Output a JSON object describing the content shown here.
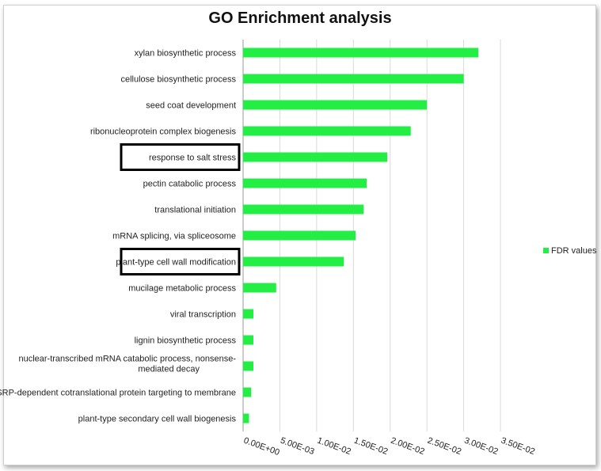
{
  "chart_data": {
    "type": "bar",
    "orientation": "horizontal",
    "title": "GO Enrichment analysis",
    "categories": [
      "xylan biosynthetic process",
      "cellulose biosynthetic process",
      "seed coat development",
      "ribonucleoprotein complex biogenesis",
      "response to salt stress",
      "pectin catabolic process",
      "translational initiation",
      "mRNA splicing, via spliceosome",
      "plant-type cell wall modification",
      "mucilage metabolic process",
      "viral transcription",
      "lignin biosynthetic process",
      "nuclear-transcribed mRNA catabolic process, nonsense-mediated decay",
      "SRP-dependent cotranslational protein targeting to membrane",
      "plant-type secondary cell wall biogenesis"
    ],
    "series": [
      {
        "name": "FDR values",
        "color": "#22ee44",
        "values": [
          0.032,
          0.03,
          0.025,
          0.0228,
          0.0196,
          0.0168,
          0.0164,
          0.0153,
          0.0137,
          0.0045,
          0.0014,
          0.0014,
          0.0014,
          0.0011,
          0.0008
        ]
      }
    ],
    "highlighted_categories": [
      "response to salt stress",
      "plant-type cell wall modification"
    ],
    "xlim": [
      0,
      0.035
    ],
    "xticks": [
      "0.00E+00",
      "5.00E-03",
      "1.00E-02",
      "1.50E-02",
      "2.00E-02",
      "2.50E-02",
      "3.00E-02",
      "3.50E-02"
    ],
    "grid": true,
    "legend_position": "right"
  }
}
